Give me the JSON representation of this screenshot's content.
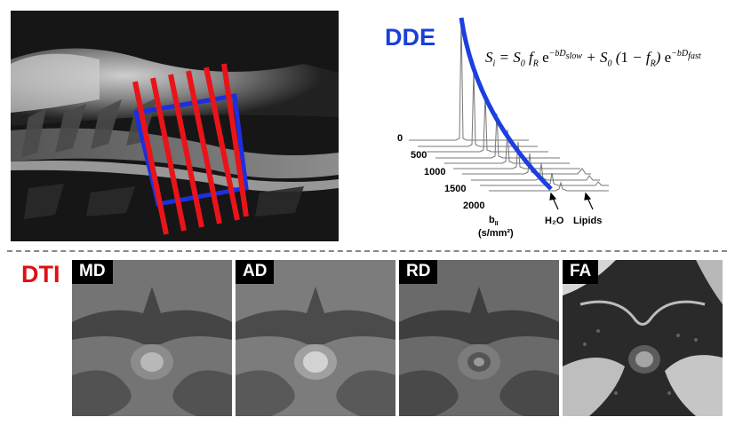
{
  "dde": {
    "title": "DDE",
    "equation": {
      "S": "S",
      "i": "i",
      "S0": "S",
      "zero": "0",
      "f": "f",
      "R": "R",
      "e": "e",
      "exp_slow": "−bD",
      "slow": "slow",
      "exp_fast": "−bD",
      "fast": "fast",
      "one": "1"
    },
    "b_values": [
      "0",
      "500",
      "1000",
      "1500",
      "2000"
    ],
    "axis_label_b": "b",
    "axis_label_sub": "II",
    "axis_units": "(s/mm²)",
    "peak_water": "H₂O",
    "peak_lipids": "Lipids"
  },
  "dti": {
    "title": "DTI",
    "panels": [
      {
        "label": "MD"
      },
      {
        "label": "AD"
      },
      {
        "label": "RD"
      },
      {
        "label": "FA"
      }
    ]
  },
  "colors": {
    "dde_blue": "#1a3fd6",
    "dti_red": "#e01010",
    "slice_red": "#e8141a",
    "voxel_blue": "#1d2fe0"
  }
}
